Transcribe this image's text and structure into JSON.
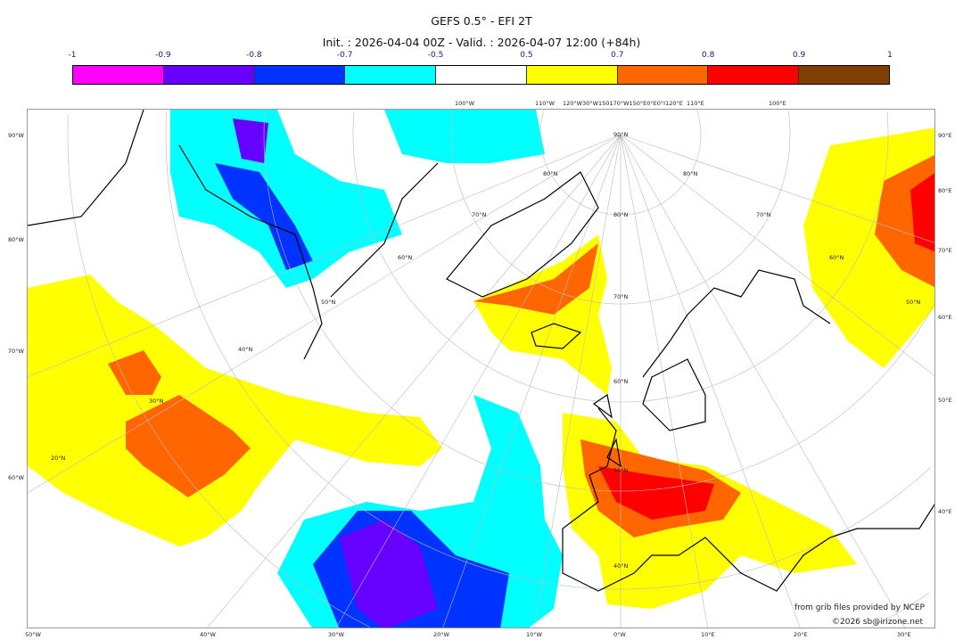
{
  "title": "GEFS 0.5° - EFI 2T",
  "subtitle": "Init. : 2026-04-04 00Z - Valid. : 2026-04-07 12:00 (+84h)",
  "colorbar": {
    "ticks": [
      "-1",
      "-0.9",
      "-0.8",
      "-0.7",
      "-0.5",
      "0.5",
      "0.7",
      "0.8",
      "0.9",
      "1"
    ],
    "colors": [
      "#ff00ff",
      "#6600ff",
      "#0033ff",
      "#00ffff",
      "#ffffff",
      "#ffff00",
      "#ff6600",
      "#ff0000",
      "#7f3f00"
    ]
  },
  "map": {
    "left_labels": [
      "90°W",
      "80°W",
      "70°W",
      "60°W"
    ],
    "right_labels": [
      "90°E",
      "80°E",
      "70°E",
      "60°E",
      "50°E",
      "40°E"
    ],
    "bottom_labels": [
      "50°W",
      "40°W",
      "30°W",
      "20°W",
      "10°W",
      "0°W",
      "10°E",
      "20°E",
      "30°E"
    ],
    "top_labels": [
      "100°W",
      "110°W",
      "120°W30°W150170°W150°E0°E0°I120°E",
      "110°E",
      "100°E"
    ],
    "lat_labels": [
      "90°N",
      "80°N",
      "70°N",
      "60°N",
      "50°N",
      "40°N",
      "30°N",
      "20°N"
    ]
  },
  "credits": {
    "source": "from grib files provided by NCEP",
    "copyright": "©2026 sb@irizone.net"
  }
}
